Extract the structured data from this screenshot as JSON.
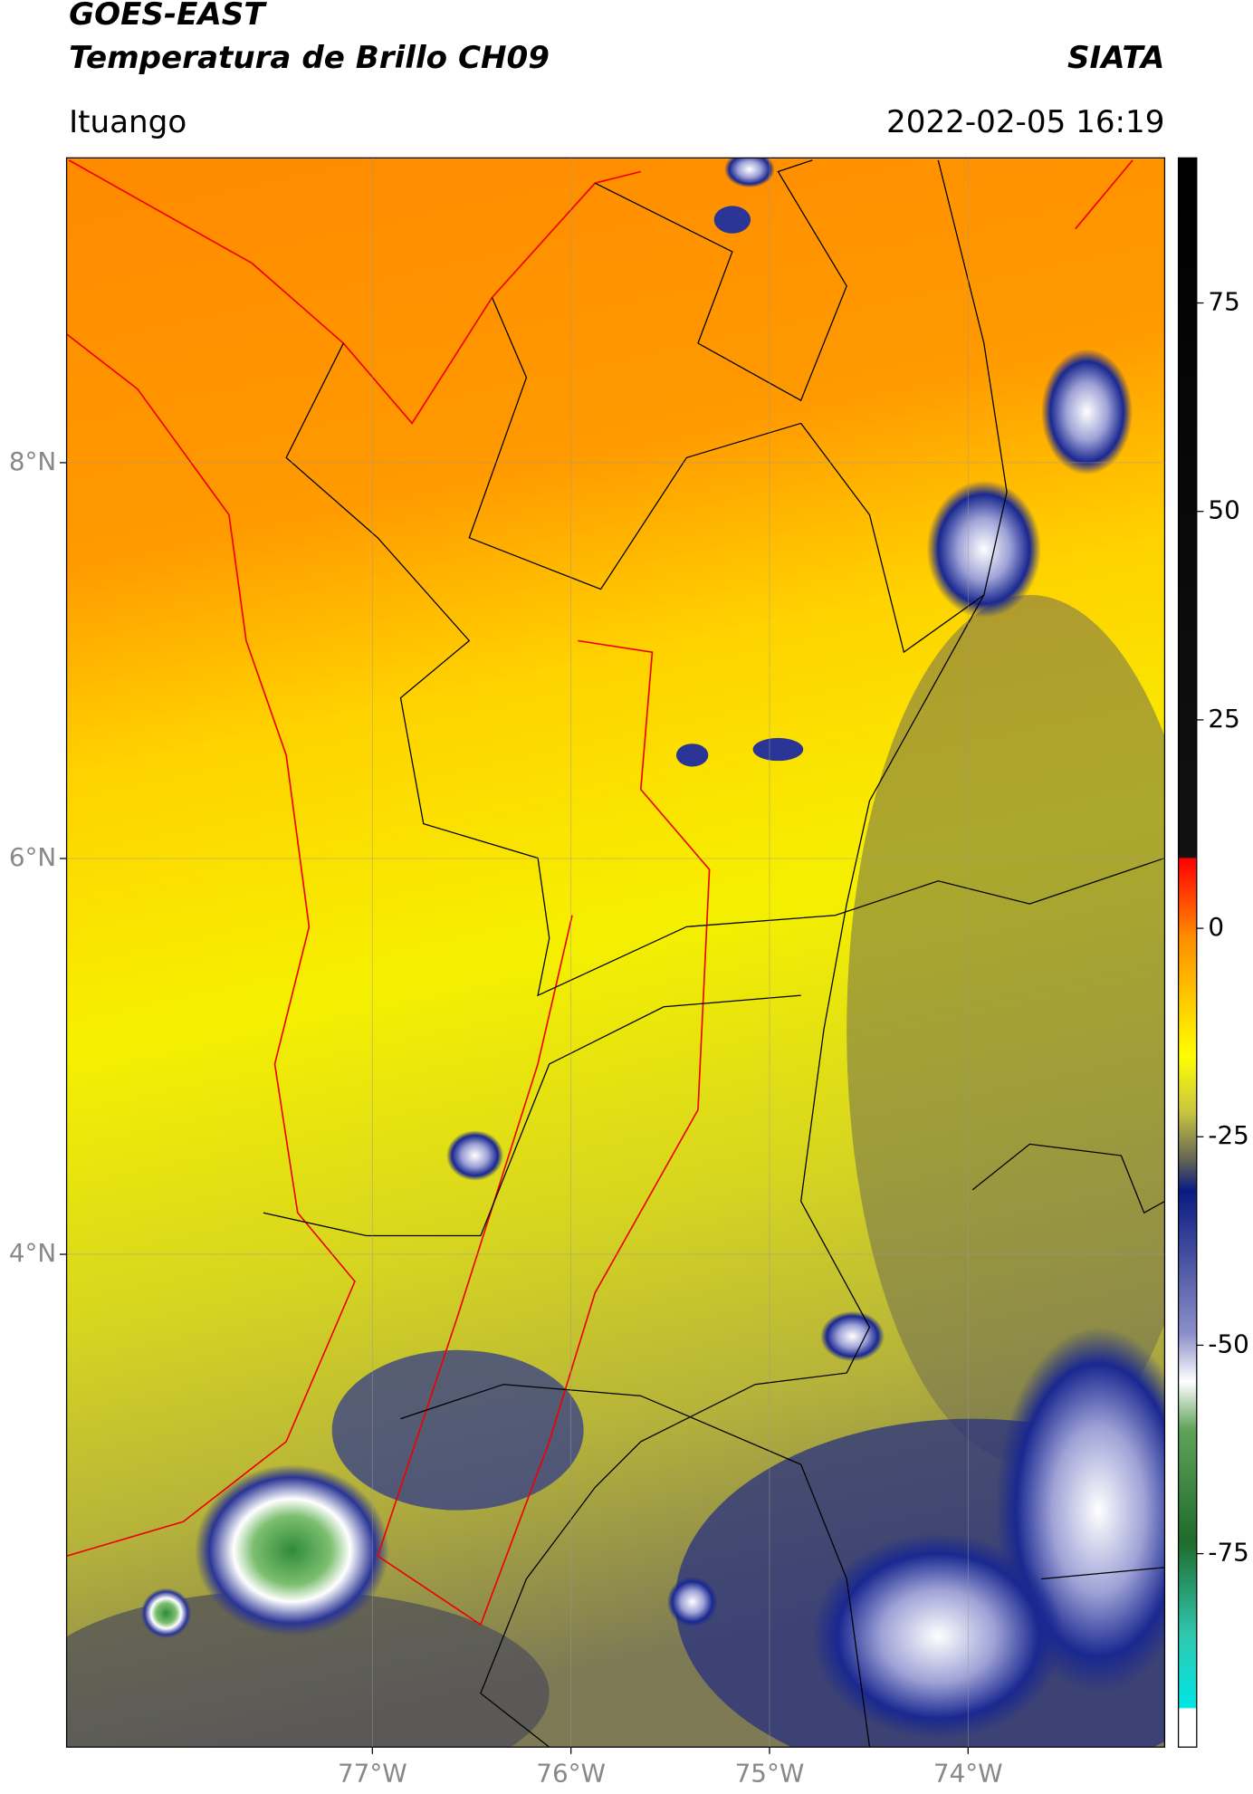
{
  "header": {
    "title": "GOES-EAST",
    "subtitle": "Temperatura de Brillo CH09",
    "brand": "SIATA",
    "region": "Ituango",
    "timestamp": "2022-02-05 16:19"
  },
  "map": {
    "xlim": [
      -78.54,
      -73.01
    ],
    "ylim": [
      1.51,
      9.54
    ],
    "xticks": [
      {
        "value": -77,
        "label": "77°W"
      },
      {
        "value": -76,
        "label": "76°W"
      },
      {
        "value": -75,
        "label": "75°W"
      },
      {
        "value": -74,
        "label": "74°W"
      }
    ],
    "yticks": [
      {
        "value": 8,
        "label": "8°N"
      },
      {
        "value": 6,
        "label": "6°N"
      },
      {
        "value": 4,
        "label": "4°N"
      }
    ],
    "grid": true
  },
  "colorbar": {
    "lim": [
      -98.2,
      92.4
    ],
    "ticks": [
      75,
      50,
      25,
      0,
      -25,
      -50,
      -75
    ]
  }
}
